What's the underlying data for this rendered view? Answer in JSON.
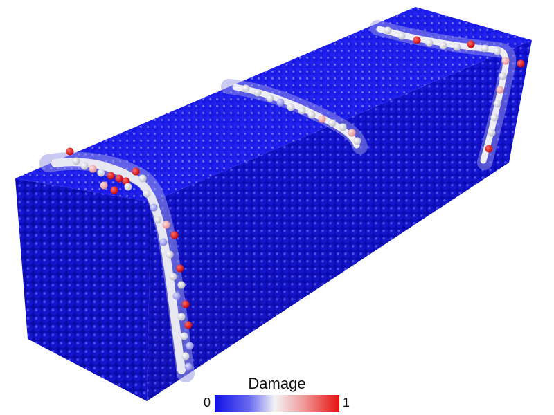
{
  "legend": {
    "title": "Damage",
    "min_label": "0",
    "max_label": "1",
    "colors": {
      "low": "#1010e8",
      "mid": "#f2f2f6",
      "high": "#e81010"
    }
  },
  "colors": {
    "background": "#ffffff",
    "particle_low": "#1010e8",
    "particle_mid": "#f2f2f6",
    "particle_high": "#e81010"
  }
}
